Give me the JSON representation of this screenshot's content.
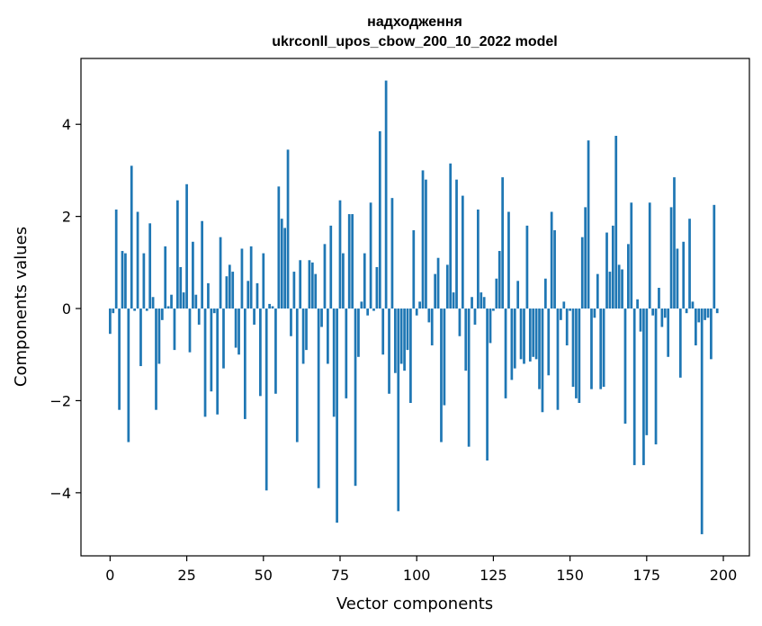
{
  "chart_data": {
    "type": "bar",
    "title": "надходження",
    "subtitle": "ukrconll_upos_cbow_200_10_2022 model",
    "xlabel": "Vector components",
    "ylabel": "Components values",
    "xlim": [
      -9.5,
      208.5
    ],
    "ylim": [
      -5.37,
      5.43
    ],
    "xticks": [
      0,
      25,
      50,
      75,
      100,
      125,
      150,
      175,
      200
    ],
    "yticks": [
      -4,
      -2,
      0,
      2,
      4
    ],
    "ytick_labels": [
      "−4",
      "−2",
      "0",
      "2",
      "4"
    ],
    "bar_color": "#1f77b4",
    "values": [
      -0.55,
      -0.1,
      2.15,
      -2.2,
      1.25,
      1.2,
      -2.9,
      3.1,
      -0.05,
      2.1,
      -1.25,
      1.2,
      -0.05,
      1.85,
      0.25,
      -2.2,
      -1.2,
      -0.25,
      1.35,
      0.05,
      0.3,
      -0.9,
      2.35,
      0.9,
      0.35,
      2.7,
      -0.95,
      1.45,
      0.3,
      -0.35,
      1.9,
      -2.35,
      0.55,
      -1.8,
      -0.1,
      -2.3,
      1.55,
      -1.3,
      0.7,
      0.95,
      0.8,
      -0.85,
      -1.0,
      1.3,
      -2.4,
      0.6,
      1.35,
      -0.35,
      0.55,
      -1.9,
      1.2,
      -3.95,
      0.1,
      0.05,
      -1.85,
      2.65,
      1.95,
      1.75,
      3.45,
      -0.6,
      0.8,
      -2.9,
      1.05,
      -1.2,
      -0.9,
      1.05,
      1.0,
      0.75,
      -3.9,
      -0.4,
      1.4,
      -1.2,
      1.8,
      -2.35,
      -4.65,
      2.35,
      1.2,
      -1.95,
      2.05,
      2.05,
      -3.85,
      -1.05,
      0.15,
      1.2,
      -0.15,
      2.3,
      -0.05,
      0.9,
      3.85,
      -1.0,
      4.95,
      -1.85,
      2.4,
      -1.4,
      -4.4,
      -1.2,
      -1.35,
      -0.9,
      -2.05,
      1.7,
      -0.15,
      0.15,
      3.0,
      2.8,
      -0.3,
      -0.8,
      0.75,
      1.1,
      -2.9,
      -2.1,
      0.95,
      3.15,
      0.35,
      2.8,
      -0.6,
      2.45,
      -1.35,
      -3.0,
      0.25,
      -0.35,
      2.15,
      0.35,
      0.25,
      -3.3,
      -0.75,
      -0.05,
      0.65,
      1.25,
      2.85,
      -1.95,
      2.1,
      -1.55,
      -1.3,
      0.6,
      -1.1,
      -1.2,
      1.8,
      -1.15,
      -1.05,
      -1.1,
      -1.75,
      -2.25,
      0.65,
      -1.45,
      2.1,
      1.7,
      -2.2,
      -0.25,
      0.15,
      -0.8,
      -0.05,
      -1.7,
      -1.95,
      -2.05,
      1.55,
      2.2,
      3.65,
      -1.75,
      -0.2,
      0.75,
      -1.75,
      -1.7,
      1.65,
      0.8,
      1.8,
      3.75,
      0.95,
      0.85,
      -2.5,
      1.4,
      2.3,
      -3.4,
      0.2,
      -0.5,
      -3.4,
      -2.75,
      2.3,
      -0.15,
      -2.95,
      0.45,
      -0.4,
      -0.2,
      -1.05,
      2.2,
      2.85,
      1.3,
      -1.5,
      1.45,
      -0.1,
      1.95,
      0.15,
      -0.8,
      -0.3,
      -4.9,
      -0.25,
      -0.2,
      -1.1,
      2.25,
      -0.1
    ]
  }
}
